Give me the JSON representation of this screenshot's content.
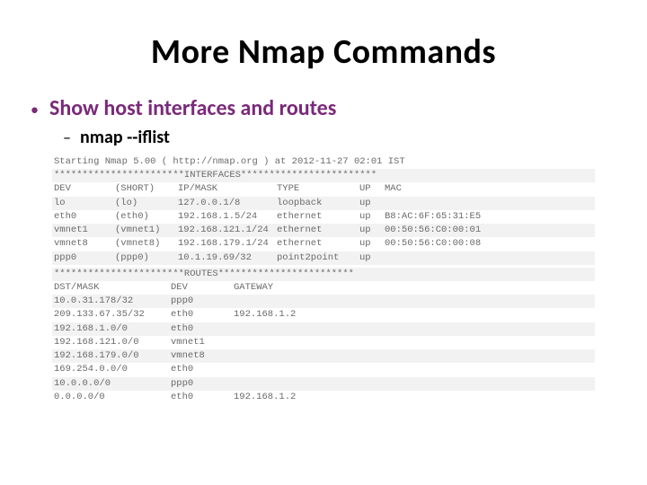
{
  "title": "More Nmap Commands",
  "bullet1": "Show host interfaces and routes",
  "bullet2": "nmap --iflist",
  "terminal": {
    "start_line": "Starting Nmap 5.00 ( http://nmap.org ) at 2012-11-27 02:01 IST",
    "interfaces_header": "***********************INTERFACES************************",
    "iface_cols": [
      "DEV",
      "(SHORT)",
      "IP/MASK",
      "TYPE",
      "UP",
      "MAC"
    ],
    "iface_rows": [
      [
        "lo",
        "(lo)",
        "127.0.0.1/8",
        "loopback",
        "up",
        ""
      ],
      [
        "eth0",
        "(eth0)",
        "192.168.1.5/24",
        "ethernet",
        "up",
        "B8:AC:6F:65:31:E5"
      ],
      [
        "vmnet1",
        "(vmnet1)",
        "192.168.121.1/24",
        "ethernet",
        "up",
        "00:50:56:C0:00:01"
      ],
      [
        "vmnet8",
        "(vmnet8)",
        "192.168.179.1/24",
        "ethernet",
        "up",
        "00:50:56:C0:00:08"
      ],
      [
        "ppp0",
        "(ppp0)",
        "10.1.19.69/32",
        "point2point",
        "up",
        ""
      ]
    ],
    "routes_header": "***********************ROUTES************************",
    "route_cols": [
      "DST/MASK",
      "DEV",
      "GATEWAY"
    ],
    "route_rows": [
      [
        "10.0.31.178/32",
        "ppp0",
        ""
      ],
      [
        "209.133.67.35/32",
        "eth0",
        "192.168.1.2"
      ],
      [
        "192.168.1.0/0",
        "eth0",
        ""
      ],
      [
        "192.168.121.0/0",
        "vmnet1",
        ""
      ],
      [
        "192.168.179.0/0",
        "vmnet8",
        ""
      ],
      [
        "169.254.0.0/0",
        "eth0",
        ""
      ],
      [
        "10.0.0.0/0",
        "ppp0",
        ""
      ],
      [
        "0.0.0.0/0",
        "eth0",
        "192.168.1.2"
      ]
    ]
  },
  "styles": {
    "title_color": "#000000",
    "bullet1_color": "#7a2a7a",
    "bullet2_color": "#000000",
    "terminal_text_color": "#6a6a6a",
    "row_shade_color": "#f2f2f2",
    "background": "#ffffff",
    "title_fontsize": 38,
    "bullet1_fontsize": 24,
    "bullet2_fontsize": 20,
    "terminal_fontsize": 10.5
  }
}
